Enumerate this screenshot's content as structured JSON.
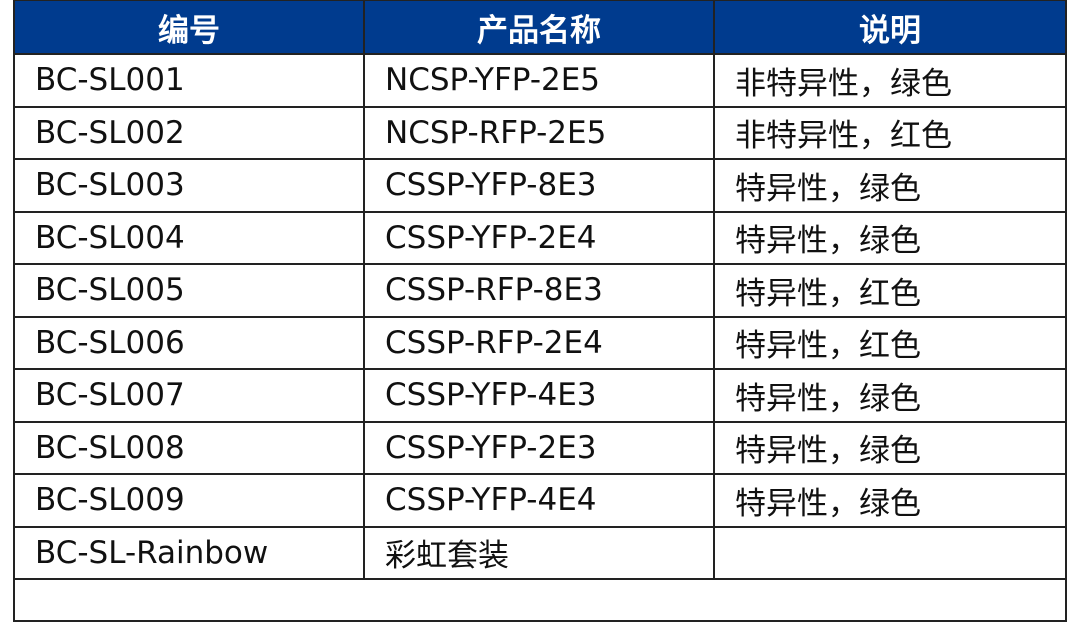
{
  "table": {
    "header_color": "#003b8e",
    "headers": [
      "编号",
      "产品名称",
      "说明"
    ],
    "rows": [
      [
        "BC-SL001",
        "NCSP-YFP-2E5",
        "非特异性，绿色"
      ],
      [
        "BC-SL002",
        "NCSP-RFP-2E5",
        "非特异性，红色"
      ],
      [
        "BC-SL003",
        "CSSP-YFP-8E3",
        "特异性，绿色"
      ],
      [
        "BC-SL004",
        "CSSP-YFP-2E4",
        "特异性，绿色"
      ],
      [
        "BC-SL005",
        "CSSP-RFP-8E3",
        "特异性，红色"
      ],
      [
        "BC-SL006",
        "CSSP-RFP-2E4",
        "特异性，红色"
      ],
      [
        "BC-SL007",
        "CSSP-YFP-4E3",
        "特异性，绿色"
      ],
      [
        "BC-SL008",
        "CSSP-YFP-2E3",
        "特异性，绿色"
      ],
      [
        "BC-SL009",
        "CSSP-YFP-4E4",
        "特异性，绿色"
      ],
      [
        "BC-SL-Rainbow",
        "彩虹套装",
        ""
      ]
    ]
  }
}
